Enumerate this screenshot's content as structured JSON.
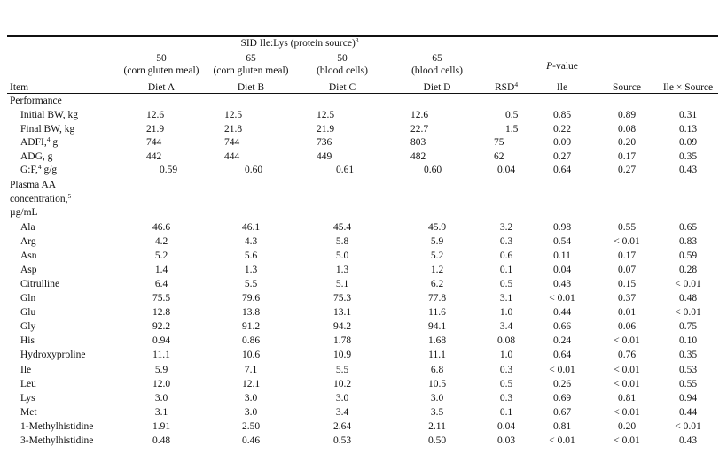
{
  "header": {
    "group_label": "SID Ile:Lys (protein source)",
    "group_sup": "3",
    "level_a": "50",
    "source_a": "(corn gluten meal)",
    "level_b": "65",
    "source_b": "(corn gluten meal)",
    "level_c": "50",
    "source_c": "(blood cells)",
    "level_d": "65",
    "source_d": "(blood cells)",
    "pvalue_label": "P",
    "pvalue_suffix": "-value",
    "item": "Item",
    "diet_a": "Diet A",
    "diet_b": "Diet B",
    "diet_c": "Diet C",
    "diet_d": "Diet D",
    "rsd": "RSD",
    "rsd_sup": "4",
    "ile": "Ile",
    "source": "Source",
    "interaction": "Ile × Source"
  },
  "performance": {
    "section": "Performance",
    "rows": [
      {
        "item": "Initial BW, kg",
        "sup": "",
        "unit": "",
        "a": "12.6",
        "b": "12.5",
        "c": "12.5",
        "d": "12.6",
        "rsd": "0.5",
        "ile": "0.85",
        "source": "0.89",
        "inter": "0.31"
      },
      {
        "item": "Final BW, kg",
        "sup": "",
        "unit": "",
        "a": "21.9",
        "b": "21.8",
        "c": "21.9",
        "d": "22.7",
        "rsd": "1.5",
        "ile": "0.22",
        "source": "0.08",
        "inter": "0.13"
      },
      {
        "item": "ADFI,",
        "sup": "4",
        "unit": " g",
        "a": "744",
        "b": "744",
        "c": "736",
        "d": "803",
        "rsd": "75",
        "ile": "0.09",
        "source": "0.20",
        "inter": "0.09"
      },
      {
        "item": "ADG, g",
        "sup": "",
        "unit": "",
        "a": "442",
        "b": "444",
        "c": "449",
        "d": "482",
        "rsd": "62",
        "ile": "0.27",
        "source": "0.17",
        "inter": "0.35"
      },
      {
        "item": "G:F,",
        "sup": "4",
        "unit": " g/g",
        "a": "0.59",
        "b": "0.60",
        "c": "0.61",
        "d": "0.60",
        "rsd": "0.04",
        "ile": "0.64",
        "source": "0.27",
        "inter": "0.43"
      }
    ]
  },
  "plasma": {
    "section_line1": "Plasma AA",
    "section_line2": "concentration,",
    "section_sup": "5",
    "section_line3": "µg/mL",
    "rows": [
      {
        "item": "Ala",
        "a": "46.6",
        "b": "46.1",
        "c": "45.4",
        "d": "45.9",
        "rsd": "3.2",
        "ile": "0.98",
        "source": "0.55",
        "inter": "0.65"
      },
      {
        "item": "Arg",
        "a": "4.2",
        "b": "4.3",
        "c": "5.8",
        "d": "5.9",
        "rsd": "0.3",
        "ile": "0.54",
        "source": "< 0.01",
        "inter": "0.83"
      },
      {
        "item": "Asn",
        "a": "5.2",
        "b": "5.6",
        "c": "5.0",
        "d": "5.2",
        "rsd": "0.6",
        "ile": "0.11",
        "source": "0.17",
        "inter": "0.59"
      },
      {
        "item": "Asp",
        "a": "1.4",
        "b": "1.3",
        "c": "1.3",
        "d": "1.2",
        "rsd": "0.1",
        "ile": "0.04",
        "source": "0.07",
        "inter": "0.28"
      },
      {
        "item": "Citrulline",
        "a": "6.4",
        "b": "5.5",
        "c": "5.1",
        "d": "6.2",
        "rsd": "0.5",
        "ile": "0.43",
        "source": "0.15",
        "inter": "< 0.01"
      },
      {
        "item": "Gln",
        "a": "75.5",
        "b": "79.6",
        "c": "75.3",
        "d": "77.8",
        "rsd": "3.1",
        "ile": "< 0.01",
        "source": "0.37",
        "inter": "0.48"
      },
      {
        "item": "Glu",
        "a": "12.8",
        "b": "13.8",
        "c": "13.1",
        "d": "11.6",
        "rsd": "1.0",
        "ile": "0.44",
        "source": "0.01",
        "inter": "< 0.01"
      },
      {
        "item": "Gly",
        "a": "92.2",
        "b": "91.2",
        "c": "94.2",
        "d": "94.1",
        "rsd": "3.4",
        "ile": "0.66",
        "source": "0.06",
        "inter": "0.75"
      },
      {
        "item": "His",
        "a": "0.94",
        "b": "0.86",
        "c": "1.78",
        "d": "1.68",
        "rsd": "0.08",
        "ile": "0.24",
        "source": "< 0.01",
        "inter": "0.10"
      },
      {
        "item": "Hydroxyproline",
        "a": "11.1",
        "b": "10.6",
        "c": "10.9",
        "d": "11.1",
        "rsd": "1.0",
        "ile": "0.64",
        "source": "0.76",
        "inter": "0.35"
      },
      {
        "item": "Ile",
        "a": "5.9",
        "b": "7.1",
        "c": "5.5",
        "d": "6.8",
        "rsd": "0.3",
        "ile": "< 0.01",
        "source": "< 0.01",
        "inter": "0.53"
      },
      {
        "item": "Leu",
        "a": "12.0",
        "b": "12.1",
        "c": "10.2",
        "d": "10.5",
        "rsd": "0.5",
        "ile": "0.26",
        "source": "< 0.01",
        "inter": "0.55"
      },
      {
        "item": "Lys",
        "a": "3.0",
        "b": "3.0",
        "c": "3.0",
        "d": "3.0",
        "rsd": "0.3",
        "ile": "0.69",
        "source": "0.81",
        "inter": "0.94"
      },
      {
        "item": "Met",
        "a": "3.1",
        "b": "3.0",
        "c": "3.4",
        "d": "3.5",
        "rsd": "0.1",
        "ile": "0.67",
        "source": "< 0.01",
        "inter": "0.44"
      },
      {
        "item": "1-Methylhistidine",
        "a": "1.91",
        "b": "2.50",
        "c": "2.64",
        "d": "2.11",
        "rsd": "0.04",
        "ile": "0.81",
        "source": "0.20",
        "inter": "< 0.01"
      },
      {
        "item": "3-Methylhistidine",
        "a": "0.48",
        "b": "0.46",
        "c": "0.53",
        "d": "0.50",
        "rsd": "0.03",
        "ile": "< 0.01",
        "source": "< 0.01",
        "inter": "0.43"
      }
    ]
  }
}
